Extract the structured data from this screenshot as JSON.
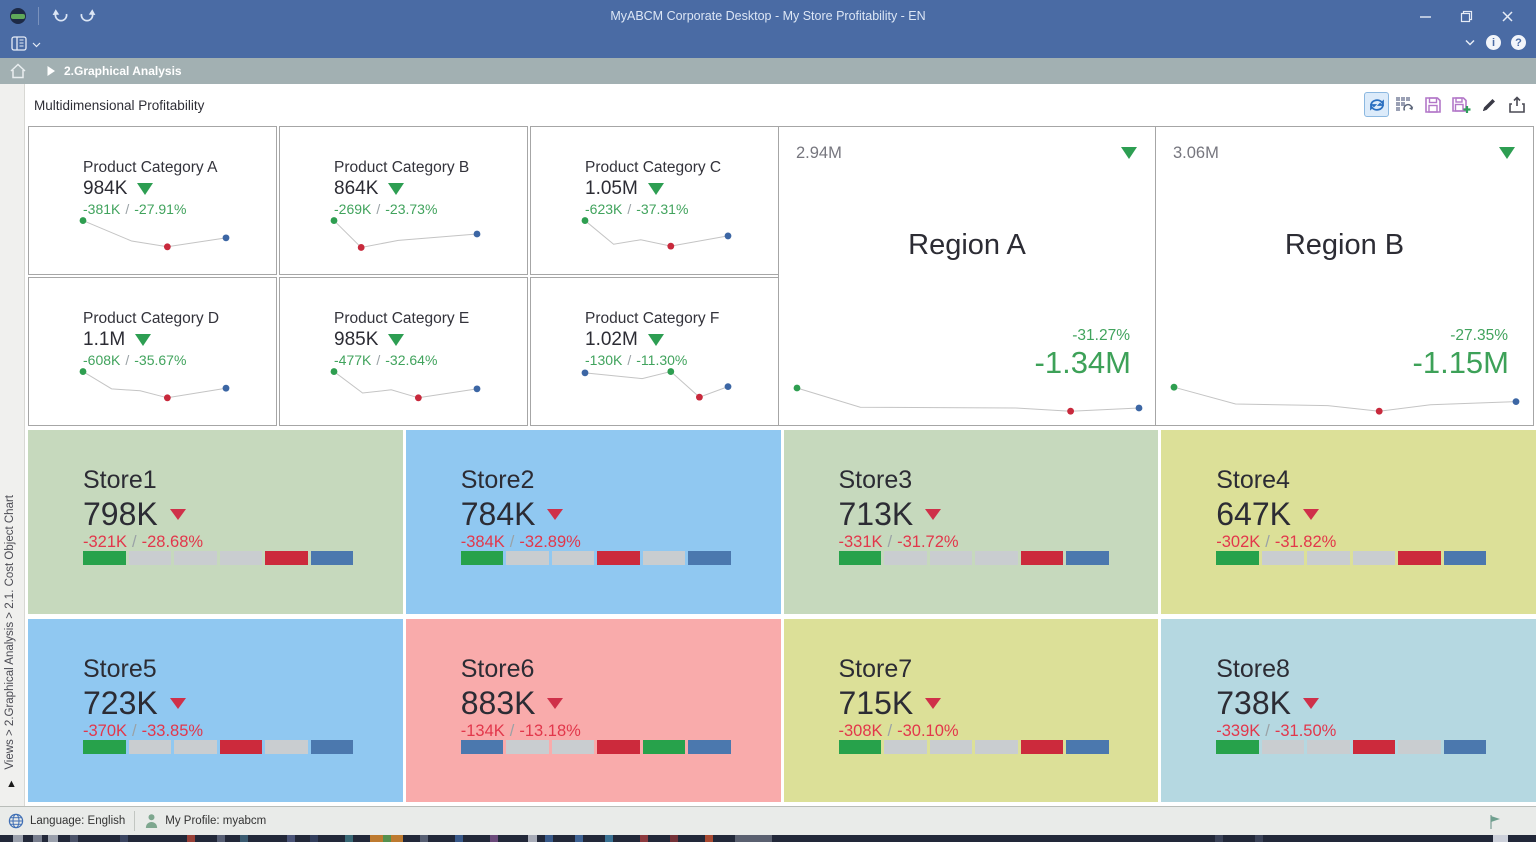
{
  "window": {
    "title": "MyABCM Corporate Desktop - My Store Profitability - EN"
  },
  "breadcrumb": {
    "path": "2.Graphical Analysis"
  },
  "page": {
    "title": "Multidimensional Profitability"
  },
  "sidebar": {
    "path": "Views > 2.Graphical Analysis > 2.1. Cost Object Chart"
  },
  "statusbar": {
    "language": "Language: English",
    "profile": "My Profile: myabcm"
  },
  "colors": {
    "titlebar": "#4a6ba4",
    "breadcrumb": "#a2b0b2",
    "green_text": "#41a35d",
    "red_text": "#e2374b",
    "bar_green": "#27a24b",
    "bar_gray": "#c9cdd0",
    "bar_red": "#cc2a3c",
    "bar_blue": "#4b78ae",
    "dot_green": "#2e9e50",
    "dot_red": "#c8293c",
    "dot_blue": "#3c66a4",
    "spark_line": "#c4c4c4"
  },
  "chart_data": {
    "categories": [
      {
        "name": "Product Category A",
        "value": "984K",
        "delta": "-381K",
        "pct": "-27.91%",
        "spark": {
          "points": [
            [
              0,
              0.08
            ],
            [
              0.34,
              0.72
            ],
            [
              0.59,
              0.9
            ],
            [
              1,
              0.62
            ]
          ],
          "dots": [
            [
              0,
              "dot_green"
            ],
            [
              2,
              "dot_red"
            ],
            [
              3,
              "dot_blue"
            ]
          ]
        }
      },
      {
        "name": "Product Category B",
        "value": "864K",
        "delta": "-269K",
        "pct": "-23.73%",
        "spark": {
          "points": [
            [
              0,
              0.08
            ],
            [
              0.19,
              0.92
            ],
            [
              0.45,
              0.7
            ],
            [
              0.72,
              0.6
            ],
            [
              1,
              0.5
            ]
          ],
          "dots": [
            [
              0,
              "dot_green"
            ],
            [
              1,
              "dot_red"
            ],
            [
              4,
              "dot_blue"
            ]
          ]
        }
      },
      {
        "name": "Product Category C",
        "value": "1.05M",
        "delta": "-623K",
        "pct": "-37.31%",
        "spark": {
          "points": [
            [
              0,
              0.08
            ],
            [
              0.2,
              0.82
            ],
            [
              0.39,
              0.68
            ],
            [
              0.6,
              0.88
            ],
            [
              1,
              0.56
            ]
          ],
          "dots": [
            [
              0,
              "dot_green"
            ],
            [
              3,
              "dot_red"
            ],
            [
              4,
              "dot_blue"
            ]
          ]
        }
      },
      {
        "name": "Product Category D",
        "value": "1.1M",
        "delta": "-608K",
        "pct": "-35.67%",
        "spark": {
          "points": [
            [
              0,
              0.08
            ],
            [
              0.2,
              0.62
            ],
            [
              0.4,
              0.68
            ],
            [
              0.59,
              0.9
            ],
            [
              1,
              0.6
            ]
          ],
          "dots": [
            [
              0,
              "dot_green"
            ],
            [
              3,
              "dot_red"
            ],
            [
              4,
              "dot_blue"
            ]
          ]
        }
      },
      {
        "name": "Product Category E",
        "value": "985K",
        "delta": "-477K",
        "pct": "-32.64%",
        "spark": {
          "points": [
            [
              0,
              0.08
            ],
            [
              0.2,
              0.75
            ],
            [
              0.4,
              0.65
            ],
            [
              0.59,
              0.9
            ],
            [
              1,
              0.62
            ]
          ],
          "dots": [
            [
              0,
              "dot_green"
            ],
            [
              3,
              "dot_red"
            ],
            [
              4,
              "dot_blue"
            ]
          ]
        }
      },
      {
        "name": "Product Category F",
        "value": "1.02M",
        "delta": "-130K",
        "pct": "-11.30%",
        "spark": {
          "points": [
            [
              0,
              0.12
            ],
            [
              0.4,
              0.3
            ],
            [
              0.6,
              0.08
            ],
            [
              0.8,
              0.88
            ],
            [
              1,
              0.55
            ]
          ],
          "dots": [
            [
              0,
              "dot_blue"
            ],
            [
              2,
              "dot_green"
            ],
            [
              3,
              "dot_red"
            ],
            [
              4,
              "dot_blue"
            ]
          ]
        }
      }
    ],
    "regions": [
      {
        "name": "Region A",
        "total": "2.94M",
        "pct": "-31.27%",
        "delta": "-1.34M",
        "spark": {
          "points": [
            [
              0,
              0.3
            ],
            [
              0.185,
              0.78
            ],
            [
              0.64,
              0.8
            ],
            [
              0.8,
              0.88
            ],
            [
              1,
              0.8
            ]
          ],
          "dots": [
            [
              0,
              "dot_green"
            ],
            [
              3,
              "dot_red"
            ],
            [
              4,
              "dot_blue"
            ]
          ]
        }
      },
      {
        "name": "Region B",
        "total": "3.06M",
        "pct": "-27.35%",
        "delta": "-1.15M",
        "spark": {
          "points": [
            [
              0,
              0.28
            ],
            [
              0.18,
              0.7
            ],
            [
              0.45,
              0.74
            ],
            [
              0.6,
              0.88
            ],
            [
              0.75,
              0.72
            ],
            [
              1,
              0.64
            ]
          ],
          "dots": [
            [
              0,
              "dot_green"
            ],
            [
              3,
              "dot_red"
            ],
            [
              5,
              "dot_blue"
            ]
          ]
        }
      }
    ],
    "stores": [
      {
        "name": "Store1",
        "value": "798K",
        "delta": "-321K",
        "pct": "-28.68%",
        "bg": "#c6d9bd",
        "segments": [
          "bar_green",
          "bar_gray",
          "bar_gray",
          "bar_gray",
          "bar_red",
          "bar_blue"
        ]
      },
      {
        "name": "Store2",
        "value": "784K",
        "delta": "-384K",
        "pct": "-32.89%",
        "bg": "#90c8f1",
        "segments": [
          "bar_green",
          "bar_gray",
          "bar_gray",
          "bar_red",
          "bar_gray",
          "bar_blue"
        ]
      },
      {
        "name": "Store3",
        "value": "713K",
        "delta": "-331K",
        "pct": "-31.72%",
        "bg": "#c6d9bd",
        "segments": [
          "bar_green",
          "bar_gray",
          "bar_gray",
          "bar_gray",
          "bar_red",
          "bar_blue"
        ]
      },
      {
        "name": "Store4",
        "value": "647K",
        "delta": "-302K",
        "pct": "-31.82%",
        "bg": "#dce098",
        "segments": [
          "bar_green",
          "bar_gray",
          "bar_gray",
          "bar_gray",
          "bar_red",
          "bar_blue"
        ]
      },
      {
        "name": "Store5",
        "value": "723K",
        "delta": "-370K",
        "pct": "-33.85%",
        "bg": "#90c8f1",
        "segments": [
          "bar_green",
          "bar_gray",
          "bar_gray",
          "bar_red",
          "bar_gray",
          "bar_blue"
        ]
      },
      {
        "name": "Store6",
        "value": "883K",
        "delta": "-134K",
        "pct": "-13.18%",
        "bg": "#f9abab",
        "segments": [
          "bar_blue",
          "bar_gray",
          "bar_gray",
          "bar_red",
          "bar_green",
          "bar_blue"
        ]
      },
      {
        "name": "Store7",
        "value": "715K",
        "delta": "-308K",
        "pct": "-30.10%",
        "bg": "#dce098",
        "segments": [
          "bar_green",
          "bar_gray",
          "bar_gray",
          "bar_gray",
          "bar_red",
          "bar_blue"
        ]
      },
      {
        "name": "Store8",
        "value": "738K",
        "delta": "-339K",
        "pct": "-31.50%",
        "bg": "#b5d8e1",
        "segments": [
          "bar_green",
          "bar_gray",
          "bar_gray",
          "bar_red",
          "bar_gray",
          "bar_blue"
        ]
      }
    ]
  }
}
